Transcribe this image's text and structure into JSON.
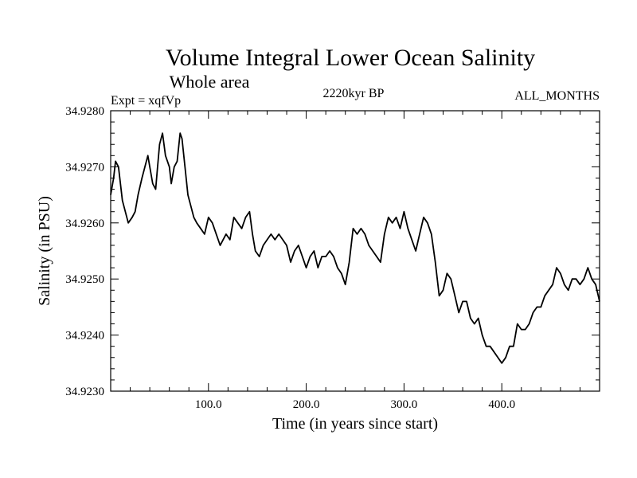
{
  "chart_data": {
    "type": "line",
    "title": "Volume Integral Lower Ocean Salinity",
    "subtitle": "Whole area",
    "annotations": {
      "experiment": "Expt = xqfVp",
      "period": "2220kyr BP",
      "months": "ALL_MONTHS"
    },
    "xlabel": "Time (in years since start)",
    "ylabel": "Salinity (in PSU)",
    "xlim": [
      0,
      500
    ],
    "ylim": [
      34.923,
      34.928
    ],
    "xticks": [
      100,
      200,
      300,
      400
    ],
    "xtick_labels": [
      "100.0",
      "200.0",
      "300.0",
      "400.0"
    ],
    "yticks": [
      34.923,
      34.924,
      34.925,
      34.926,
      34.927,
      34.928
    ],
    "ytick_labels": [
      "34.9230",
      "34.9240",
      "34.9250",
      "34.9260",
      "34.9270",
      "34.9280"
    ],
    "series": [
      {
        "name": "Salinity",
        "x": [
          0,
          3,
          5,
          8,
          12,
          15,
          18,
          22,
          25,
          28,
          32,
          35,
          38,
          40,
          43,
          46,
          48,
          50,
          53,
          56,
          60,
          62,
          65,
          68,
          71,
          73,
          76,
          79,
          82,
          85,
          88,
          92,
          96,
          100,
          104,
          108,
          112,
          115,
          118,
          122,
          126,
          130,
          134,
          138,
          142,
          145,
          148,
          152,
          156,
          160,
          164,
          168,
          172,
          176,
          180,
          184,
          188,
          192,
          196,
          200,
          204,
          208,
          212,
          216,
          220,
          224,
          228,
          232,
          236,
          240,
          244,
          248,
          252,
          256,
          260,
          264,
          268,
          272,
          276,
          280,
          284,
          288,
          292,
          296,
          300,
          304,
          308,
          312,
          316,
          320,
          324,
          328,
          332,
          336,
          340,
          344,
          348,
          352,
          356,
          360,
          364,
          368,
          372,
          376,
          380,
          384,
          388,
          392,
          396,
          400,
          404,
          408,
          412,
          416,
          420,
          424,
          428,
          432,
          436,
          440,
          444,
          448,
          452,
          456,
          460,
          464,
          468,
          472,
          476,
          480,
          484,
          488,
          492,
          496,
          500
        ],
        "values": [
          34.9265,
          34.9268,
          34.9271,
          34.927,
          34.9264,
          34.9262,
          34.926,
          34.9261,
          34.9262,
          34.9265,
          34.9268,
          34.927,
          34.9272,
          34.927,
          34.9267,
          34.9266,
          34.927,
          34.9274,
          34.9276,
          34.9272,
          34.927,
          34.9267,
          34.927,
          34.9271,
          34.9276,
          34.9275,
          34.927,
          34.9265,
          34.9263,
          34.9261,
          34.926,
          34.9259,
          34.9258,
          34.9261,
          34.926,
          34.9258,
          34.9256,
          34.9257,
          34.9258,
          34.9257,
          34.9261,
          34.926,
          34.9259,
          34.9261,
          34.9262,
          34.9258,
          34.9255,
          34.9254,
          34.9256,
          34.9257,
          34.9258,
          34.9257,
          34.9258,
          34.9257,
          34.9256,
          34.9253,
          34.9255,
          34.9256,
          34.9254,
          34.9252,
          34.9254,
          34.9255,
          34.9252,
          34.9254,
          34.9254,
          34.9255,
          34.9254,
          34.9252,
          34.9251,
          34.9249,
          34.9253,
          34.9259,
          34.9258,
          34.9259,
          34.9258,
          34.9256,
          34.9255,
          34.9254,
          34.9253,
          34.9258,
          34.9261,
          34.926,
          34.9261,
          34.9259,
          34.9262,
          34.9259,
          34.9257,
          34.9255,
          34.9258,
          34.9261,
          34.926,
          34.9258,
          34.9253,
          34.9247,
          34.9248,
          34.9251,
          34.925,
          34.9247,
          34.9244,
          34.9246,
          34.9246,
          34.9243,
          34.9242,
          34.9243,
          34.924,
          34.9238,
          34.9238,
          34.9237,
          34.9236,
          34.9235,
          34.9236,
          34.9238,
          34.9238,
          34.9242,
          34.9241,
          34.9241,
          34.9242,
          34.9244,
          34.9245,
          34.9245,
          34.9247,
          34.9248,
          34.9249,
          34.9252,
          34.9251,
          34.9249,
          34.9248,
          34.925,
          34.925,
          34.9249,
          34.925,
          34.9252,
          34.925,
          34.9249,
          34.9246
        ]
      }
    ]
  }
}
